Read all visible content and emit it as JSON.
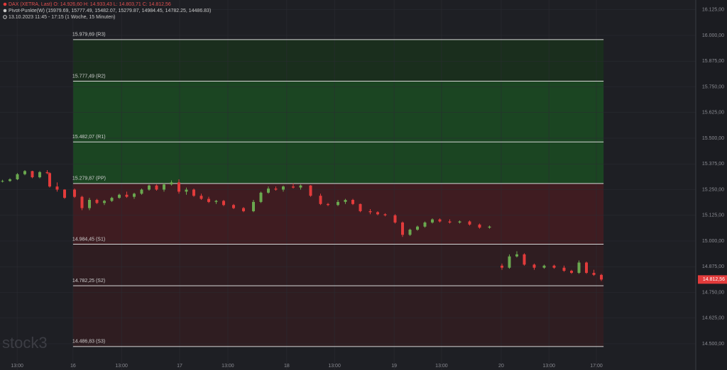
{
  "chart_data": {
    "type": "candlestick",
    "title": "DAX (XETRA, Last)  O: 14.926,60  H: 14.933,43  L: 14.803,71  C: 14.812,56",
    "indicator": "Pivot-Punkte(W)  (15979.69, 15777.49, 15482.07, 15279.87, 14984.45, 14782.25, 14486.83)",
    "period": "13.10.2023 11:45 - 17:15  (1 Woche, 15 Minuten)",
    "watermark": "stock3",
    "last_label": "14.812,56",
    "up_color": "#6aa84f",
    "down_color": "#e23b3b",
    "zone_colors": [
      "#1a2e1d",
      "#1b4522",
      "#1b4522",
      "#3f1c21",
      "#2f1d21",
      "#2f1d21"
    ],
    "xlim": [
      0,
      280
    ],
    "ylim": [
      14372.4,
      16172.4
    ],
    "grid": true,
    "xticks": [
      {
        "value": 6.9,
        "label": "13:00"
      },
      {
        "value": 29.4,
        "label": "16"
      },
      {
        "value": 48.9,
        "label": "13:00"
      },
      {
        "value": 72.3,
        "label": "17"
      },
      {
        "value": 91.7,
        "label": "13:00"
      },
      {
        "value": 115.4,
        "label": "18"
      },
      {
        "value": 134.6,
        "label": "13:00"
      },
      {
        "value": 158.6,
        "label": "19"
      },
      {
        "value": 177.7,
        "label": "13:00"
      },
      {
        "value": 201.7,
        "label": "20"
      },
      {
        "value": 220.9,
        "label": "13:00"
      },
      {
        "value": 240,
        "label": "17:00"
      }
    ],
    "yticks": [
      {
        "value": 16125,
        "label": "16.125,00"
      },
      {
        "value": 16000,
        "label": "16.000,00"
      },
      {
        "value": 15875,
        "label": "15.875,00"
      },
      {
        "value": 15750,
        "label": "15.750,00"
      },
      {
        "value": 15625,
        "label": "15.625,00"
      },
      {
        "value": 15500,
        "label": "15.500,00"
      },
      {
        "value": 15375,
        "label": "15.375,00"
      },
      {
        "value": 15250,
        "label": "15.250,00"
      },
      {
        "value": 15125,
        "label": "15.125,00"
      },
      {
        "value": 15000,
        "label": "15.000,00"
      },
      {
        "value": 14875,
        "label": "14.875,00"
      },
      {
        "value": 14750,
        "label": "14.750,00"
      },
      {
        "value": 14625,
        "label": "14.625,00"
      },
      {
        "value": 14500,
        "label": "14.500,00"
      }
    ],
    "pivots": {
      "start": 29.4,
      "end": 242.9,
      "values": [
        15979.69,
        15777.49,
        15482.07,
        15279.87,
        14984.45,
        14782.25,
        14486.83
      ],
      "value_labels": [
        "15.979,69 (R3)",
        "15.777,49 (R2)",
        "15.482,07 (R1)",
        "15.279,87 (PP)",
        "14.984,45 (S1)",
        "14.782,25 (S2)",
        "14.486,83 (S3)"
      ]
    },
    "x": [
      1,
      4,
      7,
      10,
      13,
      16,
      19,
      20,
      23,
      26,
      30,
      33,
      36,
      39,
      42,
      45,
      48,
      51,
      54,
      57,
      60,
      63,
      66,
      69,
      72,
      75,
      78,
      81,
      84,
      87,
      90,
      94,
      98,
      102,
      105,
      108,
      111,
      114,
      118,
      121,
      125,
      129,
      132,
      136,
      139,
      142,
      145,
      149,
      152,
      155,
      159,
      162,
      165,
      168,
      171,
      174,
      177,
      181,
      185,
      189,
      193,
      197,
      202,
      205,
      208,
      211,
      215,
      219,
      223,
      227,
      230,
      233,
      236,
      239,
      242
    ],
    "open": [
      15290,
      15292,
      15300,
      15325,
      15340,
      15310,
      15335,
      15330,
      15265,
      15250,
      15250,
      15215,
      15160,
      15200,
      15185,
      15195,
      15210,
      15225,
      15215,
      15230,
      15250,
      15270,
      15250,
      15275,
      15285,
      15240,
      15250,
      15220,
      15205,
      15190,
      15195,
      15175,
      15160,
      15145,
      15190,
      15235,
      15255,
      15250,
      15265,
      15260,
      15270,
      15220,
      15180,
      15175,
      15190,
      15200,
      15180,
      15145,
      15140,
      15130,
      15125,
      15090,
      15030,
      15055,
      15070,
      15090,
      15105,
      15095,
      15090,
      15095,
      15080,
      15065,
      14880,
      14870,
      14925,
      14935,
      14885,
      14870,
      14880,
      14870,
      14855,
      14845,
      14895,
      14845,
      14835
    ],
    "high": [
      15298,
      15305,
      15330,
      15345,
      15342,
      15340,
      15345,
      15335,
      15285,
      15252,
      15255,
      15220,
      15210,
      15205,
      15200,
      15215,
      15230,
      15240,
      15235,
      15255,
      15275,
      15275,
      15280,
      15295,
      15300,
      15260,
      15255,
      15230,
      15215,
      15200,
      15200,
      15180,
      15165,
      15200,
      15240,
      15265,
      15265,
      15270,
      15280,
      15275,
      15272,
      15230,
      15185,
      15200,
      15205,
      15205,
      15182,
      15155,
      15145,
      15135,
      15130,
      15095,
      15060,
      15075,
      15095,
      15110,
      15110,
      15105,
      15100,
      15100,
      15085,
      15075,
      14890,
      14935,
      14950,
      14940,
      14890,
      14885,
      14885,
      14880,
      14860,
      14905,
      14900,
      14860,
      14840
    ],
    "low": [
      15285,
      15288,
      15296,
      15320,
      15305,
      15305,
      15325,
      15260,
      15240,
      15205,
      15210,
      15150,
      15150,
      15180,
      15175,
      15190,
      15205,
      15210,
      15205,
      15225,
      15245,
      15245,
      15240,
      15270,
      15230,
      15225,
      15215,
      15200,
      15185,
      15180,
      15170,
      15155,
      15140,
      15140,
      15185,
      15230,
      15245,
      15240,
      15255,
      15250,
      15215,
      15175,
      15170,
      15170,
      15180,
      15175,
      15140,
      15130,
      15125,
      15120,
      15085,
      15020,
      15025,
      15050,
      15065,
      15085,
      15090,
      15085,
      15085,
      15075,
      15060,
      15060,
      14860,
      14865,
      14920,
      14880,
      14860,
      14865,
      14865,
      14850,
      14840,
      14840,
      14840,
      14830,
      14805
    ],
    "close": [
      15292,
      15300,
      15325,
      15340,
      15310,
      15335,
      15330,
      15265,
      15250,
      15210,
      15215,
      15160,
      15200,
      15185,
      15195,
      15210,
      15225,
      15215,
      15230,
      15250,
      15270,
      15250,
      15275,
      15285,
      15240,
      15250,
      15220,
      15205,
      15190,
      15195,
      15175,
      15160,
      15145,
      15190,
      15235,
      15255,
      15250,
      15265,
      15260,
      15270,
      15220,
      15180,
      15175,
      15190,
      15200,
      15180,
      15145,
      15140,
      15130,
      15125,
      15090,
      15030,
      15055,
      15070,
      15090,
      15105,
      15095,
      15090,
      15095,
      15080,
      15065,
      15070,
      14870,
      14925,
      14935,
      14885,
      14870,
      14880,
      14870,
      14855,
      14845,
      14895,
      14845,
      14835,
      14812.56
    ]
  }
}
